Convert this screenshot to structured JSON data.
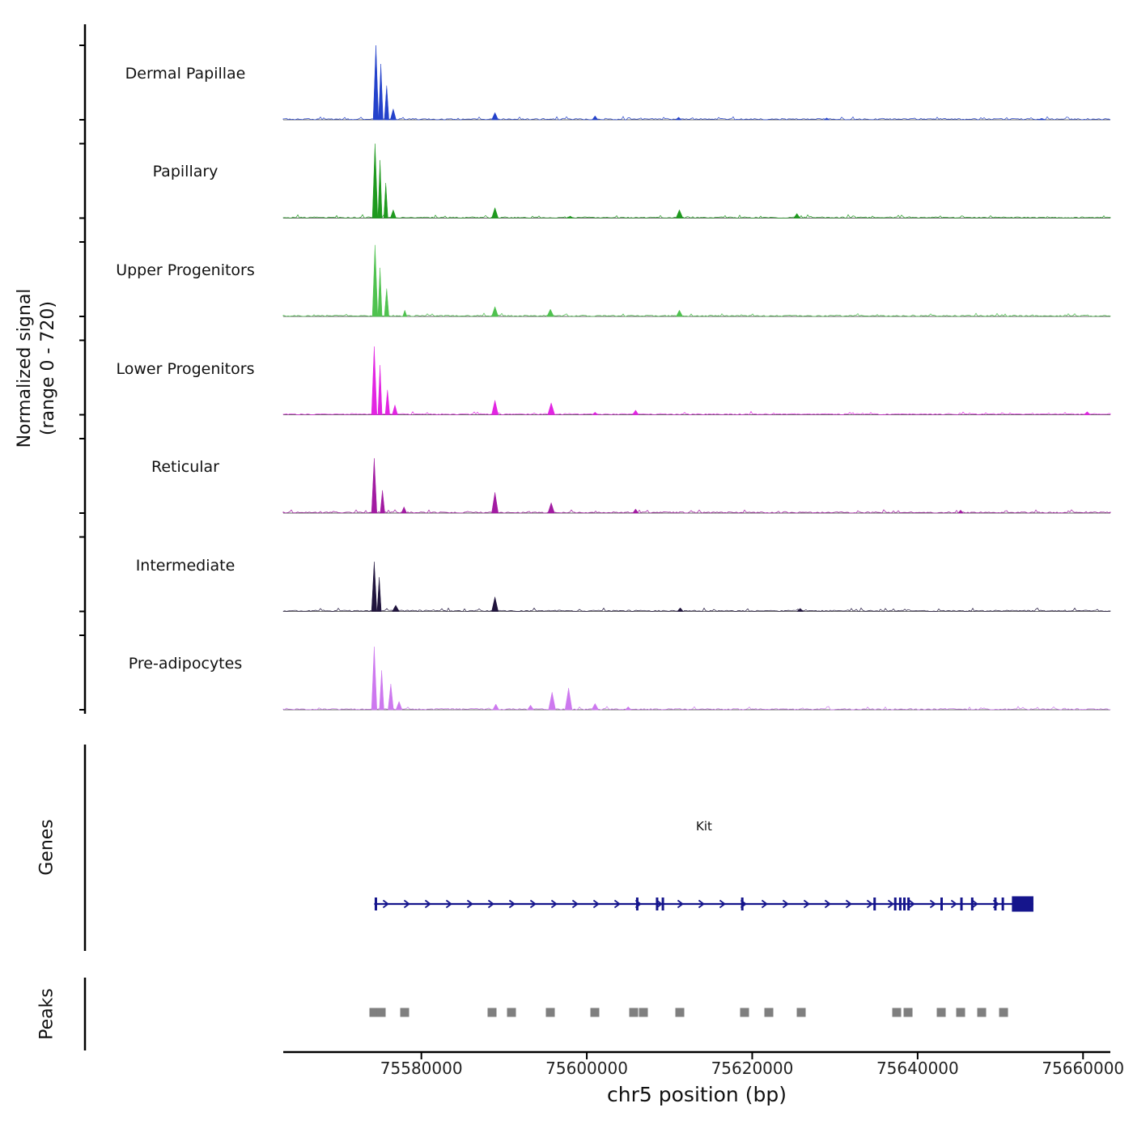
{
  "figure": {
    "y_axis_label_line1": "Normalized signal",
    "y_axis_label_line2": "(range 0 - 720)",
    "x_axis_title": "chr5 position (bp)",
    "genes_section_label": "Genes",
    "peaks_section_label": "Peaks"
  },
  "chart_data": {
    "type": "area",
    "title": "",
    "xlabel": "chr5 position (bp)",
    "ylabel": "Normalized signal (range 0 - 720)",
    "x_domain": [
      75563300,
      75663300
    ],
    "x_ticks": [
      75580000,
      75600000,
      75620000,
      75640000,
      75660000
    ],
    "x_tick_labels": [
      "75580000",
      "75600000",
      "75620000",
      "75640000",
      "75660000"
    ],
    "signal_range": [
      0,
      720
    ],
    "grid": false,
    "legend": "none",
    "tracks": [
      {
        "name": "Dermal Papillae",
        "color": "#2442cb",
        "peaks": [
          [
            75574500,
            720,
            650
          ],
          [
            75575100,
            540,
            550
          ],
          [
            75575800,
            330,
            550
          ],
          [
            75576600,
            105,
            700
          ],
          [
            75588900,
            70,
            800
          ],
          [
            75601000,
            38,
            700
          ],
          [
            75611100,
            25,
            700
          ],
          [
            75629000,
            18,
            700
          ],
          [
            75655000,
            14,
            900
          ]
        ]
      },
      {
        "name": "Papillary",
        "color": "#1f9a1f",
        "peaks": [
          [
            75574400,
            720,
            650
          ],
          [
            75575000,
            560,
            500
          ],
          [
            75575700,
            340,
            500
          ],
          [
            75576600,
            80,
            700
          ],
          [
            75588900,
            100,
            800
          ],
          [
            75598000,
            20,
            700
          ],
          [
            75611200,
            80,
            850
          ],
          [
            75625400,
            45,
            800
          ]
        ]
      },
      {
        "name": "Upper Progenitors",
        "color": "#4fc24f",
        "peaks": [
          [
            75574400,
            690,
            650
          ],
          [
            75575000,
            470,
            500
          ],
          [
            75575800,
            270,
            550
          ],
          [
            75578000,
            60,
            500
          ],
          [
            75588900,
            95,
            800
          ],
          [
            75595600,
            70,
            850
          ],
          [
            75611200,
            60,
            800
          ]
        ]
      },
      {
        "name": "Lower Progenitors",
        "color": "#e224e2",
        "peaks": [
          [
            75574300,
            660,
            650
          ],
          [
            75575000,
            480,
            500
          ],
          [
            75575900,
            240,
            550
          ],
          [
            75576800,
            95,
            650
          ],
          [
            75588900,
            140,
            800
          ],
          [
            75595700,
            115,
            850
          ],
          [
            75601000,
            25,
            700
          ],
          [
            75605900,
            45,
            750
          ],
          [
            75660500,
            30,
            800
          ]
        ]
      },
      {
        "name": "Reticular",
        "color": "#a21ba2",
        "peaks": [
          [
            75574300,
            530,
            650
          ],
          [
            75575300,
            220,
            550
          ],
          [
            75577900,
            60,
            650
          ],
          [
            75588900,
            200,
            800
          ],
          [
            75595700,
            100,
            800
          ],
          [
            75605900,
            40,
            700
          ],
          [
            75645200,
            30,
            650
          ]
        ]
      },
      {
        "name": "Intermediate",
        "color": "#20143d",
        "peaks": [
          [
            75574300,
            480,
            650
          ],
          [
            75574900,
            330,
            500
          ],
          [
            75576900,
            60,
            850
          ],
          [
            75588900,
            140,
            800
          ],
          [
            75611300,
            35,
            750
          ],
          [
            75625800,
            30,
            800
          ]
        ]
      },
      {
        "name": "Pre-adipocytes",
        "color": "#cd78ef",
        "peaks": [
          [
            75574300,
            610,
            650
          ],
          [
            75575200,
            380,
            550
          ],
          [
            75576300,
            250,
            650
          ],
          [
            75577300,
            80,
            750
          ],
          [
            75589000,
            55,
            750
          ],
          [
            75593200,
            45,
            750
          ],
          [
            75595800,
            170,
            850
          ],
          [
            75597800,
            210,
            850
          ],
          [
            75601000,
            60,
            850
          ],
          [
            75605000,
            30,
            700
          ]
        ]
      }
    ],
    "gene": {
      "name": "Kit",
      "color": "#15158c",
      "start": 75574300,
      "end": 75654000,
      "strand": "+",
      "exons": [
        75574500,
        75606100,
        75608500,
        75609200,
        75618800,
        75634800,
        75637300,
        75637900,
        75638400,
        75638900,
        75642900,
        75645300,
        75646600,
        75649400,
        75650300
      ],
      "terminal_exon": [
        75651400,
        75654000
      ]
    },
    "peak_calls": {
      "color": "#7f7f7f",
      "positions": [
        75574260,
        75575141,
        75577978,
        75588545,
        75590893,
        75595590,
        75600972,
        75605669,
        75606843,
        75611246,
        75619074,
        75622010,
        75625924,
        75637471,
        75638841,
        75642853,
        75645201,
        75647745,
        75650387
      ]
    }
  }
}
